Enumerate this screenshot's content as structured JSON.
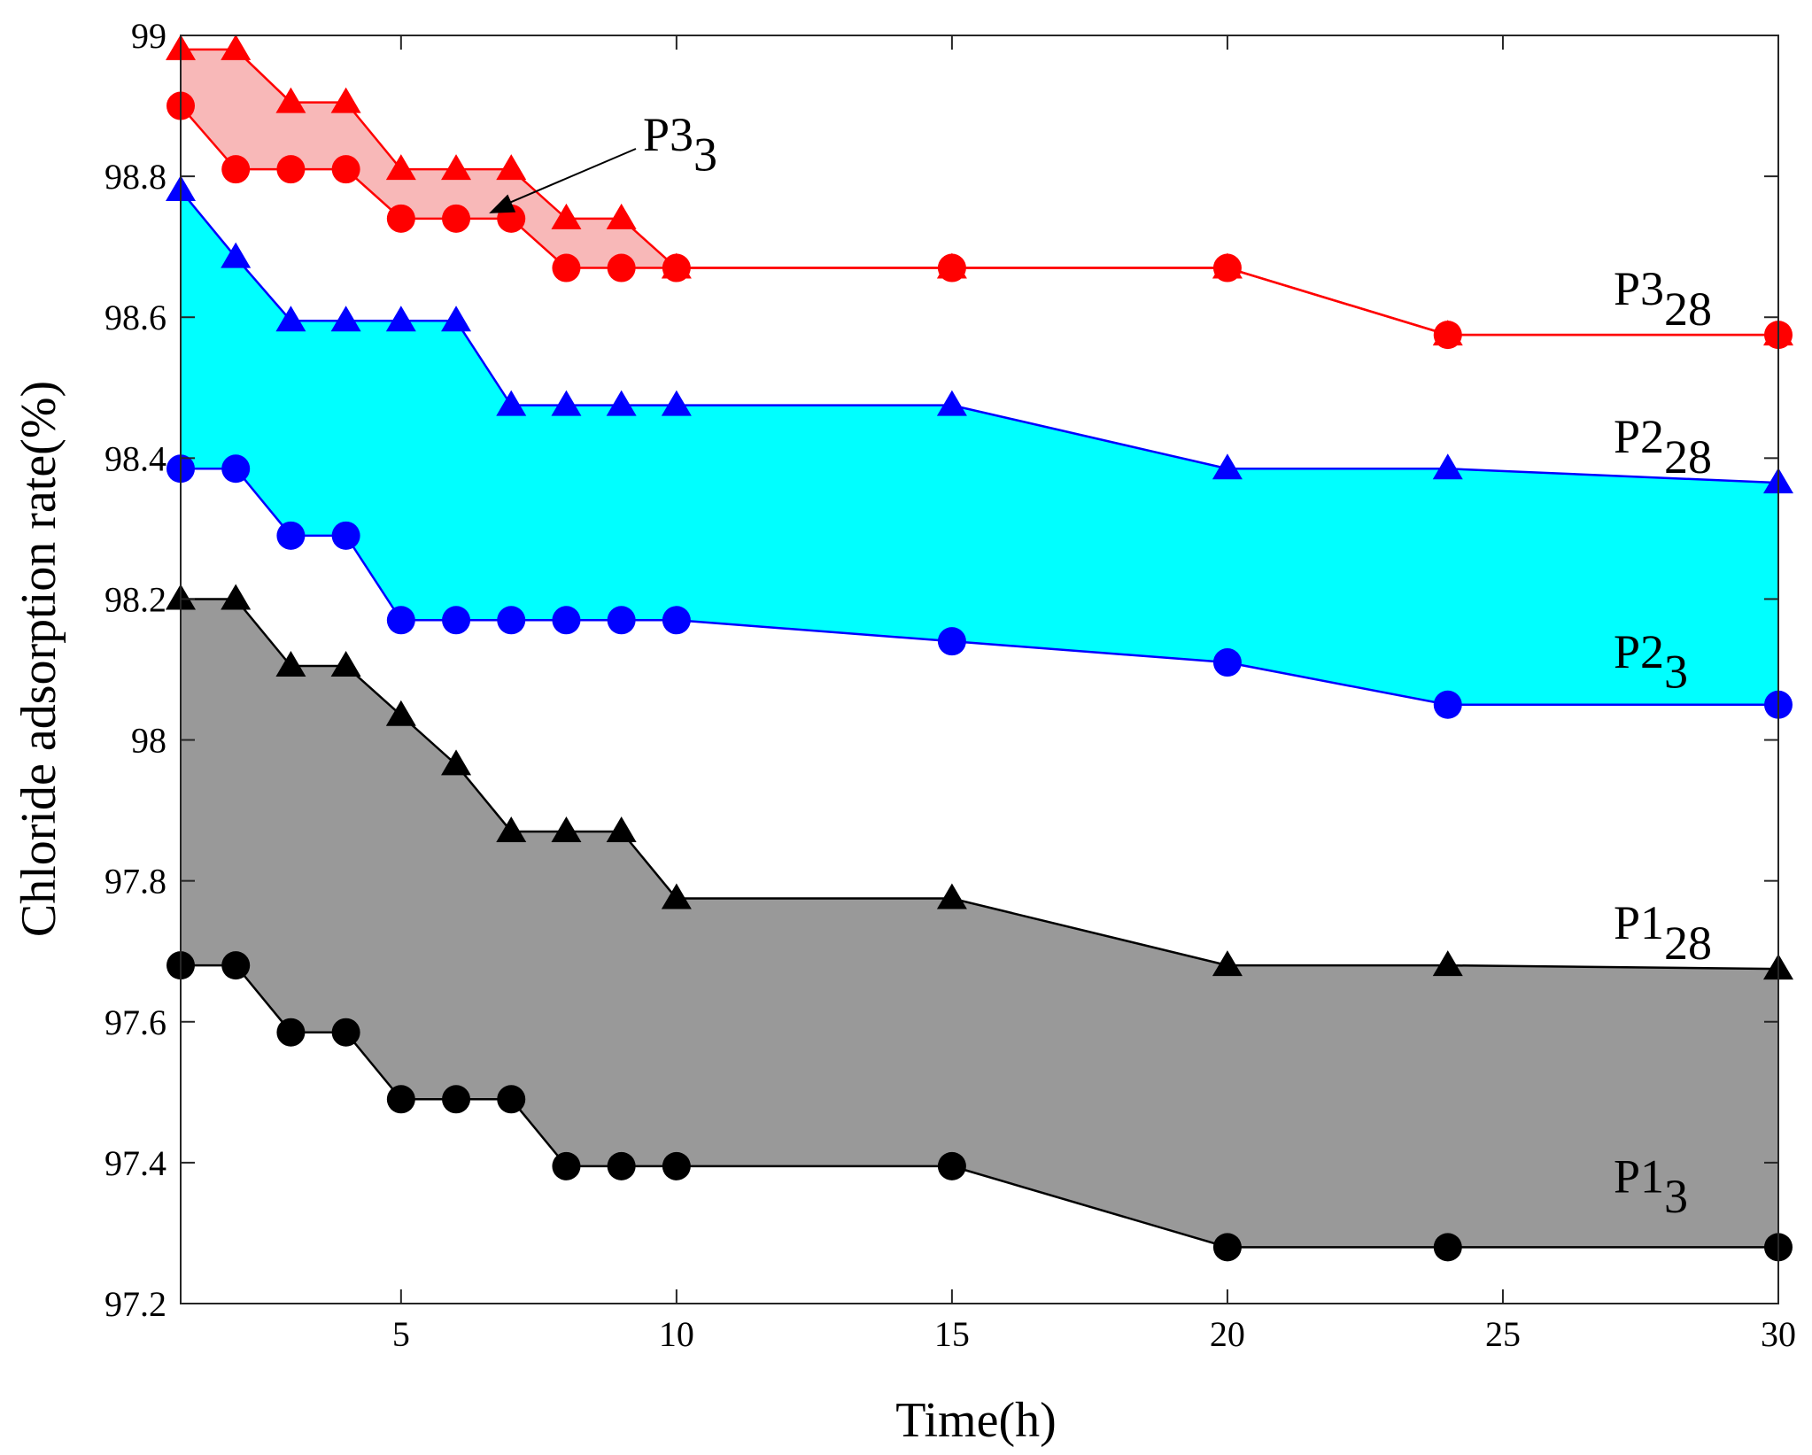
{
  "chart_data": {
    "type": "line",
    "title": "",
    "xlabel": "Time(h)",
    "ylabel": "Chloride adsorption rate(%)",
    "xlim": [
      1,
      30
    ],
    "ylim": [
      97.2,
      99
    ],
    "x": [
      1,
      2,
      3,
      4,
      5,
      6,
      7,
      8,
      9,
      10,
      15,
      20,
      24,
      30
    ],
    "xticks": [
      5,
      10,
      15,
      20,
      25,
      30
    ],
    "xtick_labels": [
      "5",
      "10",
      "15",
      "20",
      "25",
      "30"
    ],
    "yticks": [
      97.2,
      97.4,
      97.6,
      97.8,
      98,
      98.2,
      98.4,
      98.6,
      98.8,
      99
    ],
    "ytick_labels": [
      "97.2",
      "97.4",
      "97.6",
      "97.8",
      "98",
      "98.2",
      "98.4",
      "98.6",
      "98.8",
      "99"
    ],
    "series": [
      {
        "name": "P1_3",
        "group": "P1",
        "marker": "circle",
        "color": "#000000",
        "values": [
          97.68,
          97.68,
          97.585,
          97.585,
          97.49,
          97.49,
          97.49,
          97.395,
          97.395,
          97.395,
          97.395,
          97.28,
          97.28,
          97.28
        ]
      },
      {
        "name": "P1_28",
        "group": "P1",
        "marker": "triangle",
        "color": "#000000",
        "values": [
          98.2,
          98.2,
          98.105,
          98.105,
          98.035,
          97.965,
          97.87,
          97.87,
          97.87,
          97.775,
          97.775,
          97.68,
          97.68,
          97.675
        ]
      },
      {
        "name": "P2_3",
        "group": "P2",
        "marker": "circle",
        "color": "#0000ff",
        "values": [
          98.385,
          98.385,
          98.29,
          98.29,
          98.17,
          98.17,
          98.17,
          98.17,
          98.17,
          98.17,
          98.14,
          98.11,
          98.05,
          98.05
        ]
      },
      {
        "name": "P2_28",
        "group": "P2",
        "marker": "triangle",
        "color": "#0000ff",
        "values": [
          98.78,
          98.685,
          98.595,
          98.595,
          98.595,
          98.595,
          98.475,
          98.475,
          98.475,
          98.475,
          98.475,
          98.385,
          98.385,
          98.365
        ]
      },
      {
        "name": "P3_3",
        "group": "P3",
        "marker": "circle",
        "color": "#ff0000",
        "values": [
          98.9,
          98.81,
          98.81,
          98.81,
          98.74,
          98.74,
          98.74,
          98.67,
          98.67,
          98.67,
          98.67,
          98.67,
          98.575,
          98.575
        ]
      },
      {
        "name": "P3_28",
        "group": "P3",
        "marker": "triangle",
        "color": "#ff0000",
        "values": [
          98.98,
          98.98,
          98.905,
          98.905,
          98.81,
          98.81,
          98.81,
          98.74,
          98.74,
          98.67,
          98.67,
          98.67,
          98.575,
          98.575
        ]
      }
    ],
    "bands": [
      {
        "group": "P1",
        "lower": "P1_3",
        "upper": "P1_28",
        "fill": "#999999",
        "x_end": 30
      },
      {
        "group": "P2",
        "lower": "P2_3",
        "upper": "P2_28",
        "fill": "#00ffff",
        "x_end": 30
      },
      {
        "group": "P3",
        "lower": "P3_3",
        "upper": "P3_28",
        "fill": "#f8b8b8",
        "x_end": 10
      }
    ],
    "labels": [
      {
        "id": "P3_28",
        "base": "P3",
        "sub": "28"
      },
      {
        "id": "P2_28",
        "base": "P2",
        "sub": "28"
      },
      {
        "id": "P2_3",
        "base": "P2",
        "sub": "3"
      },
      {
        "id": "P1_28",
        "base": "P1",
        "sub": "28"
      },
      {
        "id": "P1_3",
        "base": "P1",
        "sub": "3"
      }
    ],
    "annotation": {
      "base": "P3",
      "sub": "3",
      "target_series": "P3_3",
      "target_x": 6.5
    }
  }
}
